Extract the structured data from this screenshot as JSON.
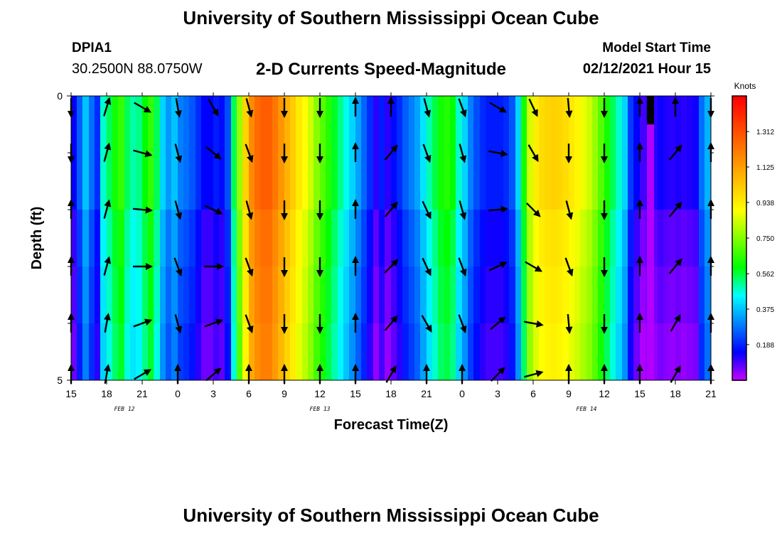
{
  "header": {
    "title": "University of Southern Mississippi Ocean Cube",
    "station_id": "DPIA1",
    "coords": "30.2500N 88.0750W",
    "chart_title": "2-D Currents Speed-Magnitude",
    "model_start_label": "Model Start Time",
    "model_start_value": "02/12/2021 Hour 15"
  },
  "footer": {
    "title": "University of Southern Mississippi Ocean Cube"
  },
  "colors": {
    "ramp": [
      "#cc00ff",
      "#0000ff",
      "#0080ff",
      "#00ffff",
      "#00ff00",
      "#80ff00",
      "#ffff00",
      "#ffc000",
      "#ff8000",
      "#ff4000",
      "#ff0000"
    ],
    "arrow": "#000000",
    "missing": "#000000"
  },
  "chart_data": {
    "type": "heatmap",
    "title": "2-D Currents Speed-Magnitude",
    "xlabel": "Forecast Time(Z)",
    "ylabel": "Depth (ft)",
    "x_range": [
      0,
      54
    ],
    "y_range": [
      0,
      5
    ],
    "y_tick_labels": [
      {
        "value": 0,
        "label": "0"
      },
      {
        "value": 5,
        "label": "5"
      }
    ],
    "y_minor_ticks": [
      1,
      2,
      3,
      4
    ],
    "x_tick_labels": [
      "15",
      "18",
      "21",
      "0",
      "3",
      "6",
      "9",
      "12",
      "15",
      "18",
      "21",
      "0",
      "3",
      "6",
      "9",
      "12",
      "15",
      "18",
      "21"
    ],
    "date_labels": [
      {
        "label": "FEB 12",
        "x": 4.5
      },
      {
        "label": "FEB 13",
        "x": 21
      },
      {
        "label": "FEB 14",
        "x": 43.5
      }
    ],
    "depth_rows": 5,
    "speed_knots": [
      0.15,
      0.26,
      0.38,
      0.28,
      0.2,
      0.48,
      0.55,
      0.62,
      0.66,
      0.55,
      0.5,
      0.52,
      0.6,
      0.66,
      0.55,
      0.4,
      0.33,
      0.38,
      0.3,
      0.28,
      0.25,
      0.2,
      0.15,
      0.15,
      0.18,
      0.16,
      0.24,
      0.55,
      0.78,
      1.0,
      1.18,
      1.25,
      1.28,
      1.28,
      1.22,
      1.15,
      1.08,
      1.02,
      0.95,
      0.9,
      0.84,
      0.76,
      0.7,
      0.64,
      0.58,
      0.52,
      0.46,
      0.4,
      0.34,
      0.27,
      0.2,
      0.12,
      0.18,
      0.12,
      0.16,
      0.2,
      0.26,
      0.3,
      0.34,
      0.42,
      0.5,
      0.56,
      0.62,
      0.64,
      0.6,
      0.48,
      0.4,
      0.3,
      0.24,
      0.2,
      0.18,
      0.18,
      0.18,
      0.2,
      0.25,
      0.4,
      0.62,
      0.85,
      0.94,
      0.98,
      1.0,
      1.01,
      1.0,
      0.98,
      0.95,
      0.92,
      0.88,
      0.84,
      0.78,
      0.7,
      0.62,
      0.55,
      0.48,
      0.4,
      0.22,
      0.15,
      0.1,
      0.12,
      0.12,
      0.14,
      0.13,
      0.12,
      0.13,
      0.12,
      0.13,
      0.14,
      0.28,
      0.36
    ],
    "row_offsets": [
      0.0,
      0.0,
      -0.04,
      -0.06,
      -0.08
    ],
    "missing_cells": [
      {
        "x0": 48.6,
        "x1": 49.2,
        "depth_rows": [
          0
        ]
      }
    ],
    "anomaly_cells": [
      {
        "x0": 48.6,
        "x1": 49.2,
        "depth_from": 0.5,
        "depth_to": 5,
        "speed_knots": 0.02
      }
    ],
    "arrow_times": [
      0,
      3,
      6,
      9,
      12,
      15,
      18,
      21,
      24,
      27,
      30,
      33,
      36,
      39,
      42,
      45,
      48,
      51,
      54
    ],
    "arrow_depths": [
      0.2,
      1.0,
      2.0,
      3.0,
      4.0,
      4.9
    ],
    "arrow_directions_deg": [
      [
        180,
        17,
        120,
        170,
        150,
        165,
        180,
        180,
        0,
        0,
        165,
        160,
        120,
        155,
        175,
        180,
        0,
        0,
        180
      ],
      [
        180,
        15,
        105,
        165,
        130,
        160,
        180,
        180,
        0,
        40,
        160,
        165,
        100,
        150,
        180,
        180,
        0,
        40,
        0
      ],
      [
        0,
        15,
        95,
        165,
        115,
        165,
        180,
        180,
        0,
        40,
        155,
        165,
        85,
        135,
        165,
        180,
        0,
        40,
        0
      ],
      [
        0,
        15,
        90,
        160,
        90,
        160,
        180,
        180,
        0,
        45,
        155,
        160,
        65,
        120,
        160,
        180,
        0,
        40,
        0
      ],
      [
        0,
        10,
        70,
        165,
        70,
        160,
        180,
        180,
        0,
        40,
        150,
        160,
        50,
        100,
        175,
        180,
        0,
        30,
        0
      ],
      [
        0,
        10,
        60,
        0,
        50,
        0,
        0,
        0,
        0,
        30,
        0,
        0,
        45,
        75,
        0,
        0,
        0,
        30,
        0
      ]
    ],
    "colorbar": {
      "label": "Knots",
      "range": [
        0,
        1.5
      ],
      "ticks": [
        "0.188",
        "0.375",
        "0.562",
        "0.750",
        "0.938",
        "1.125",
        "1.312"
      ],
      "tick_values": [
        0.188,
        0.375,
        0.562,
        0.75,
        0.938,
        1.125,
        1.312
      ]
    }
  }
}
